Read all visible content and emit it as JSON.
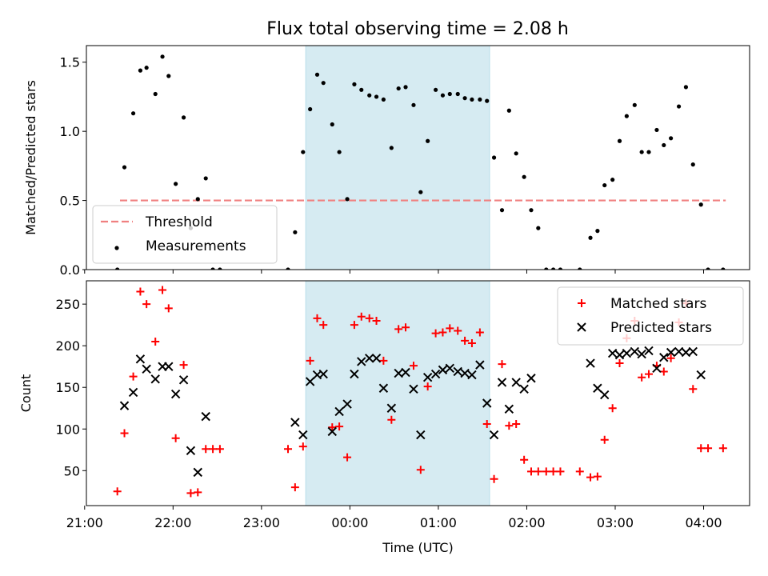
{
  "chart_data": [
    {
      "type": "scatter",
      "title": "Flux total observing time = 2.08 h",
      "xlabel": "",
      "ylabel": "Matched/Predicted stars",
      "ylim": [
        0,
        1.62
      ],
      "yticks": [
        "0.0",
        "0.5",
        "1.0",
        "1.5"
      ],
      "ytick_values": [
        0,
        0.5,
        1.0,
        1.5
      ],
      "xlim": [
        -2.98,
        4.52
      ],
      "grid": false,
      "legend": "lower-left",
      "shaded_interval": {
        "x": [
          -0.5,
          1.58
        ],
        "color": "#add8e6"
      },
      "threshold": {
        "name": "Threshold",
        "value": 0.5,
        "x": [
          -2.6,
          4.25
        ],
        "color": "#f08080"
      },
      "series": [
        {
          "name": "Measurements",
          "color": "#000000",
          "marker": "dot",
          "points": [
            [
              -2.63,
              0.0
            ],
            [
              -2.55,
              0.74
            ],
            [
              -2.45,
              1.13
            ],
            [
              -2.37,
              1.44
            ],
            [
              -2.3,
              1.46
            ],
            [
              -2.2,
              1.27
            ],
            [
              -2.12,
              1.54
            ],
            [
              -2.05,
              1.4
            ],
            [
              -1.97,
              0.62
            ],
            [
              -1.88,
              1.1
            ],
            [
              -1.8,
              0.3
            ],
            [
              -1.72,
              0.51
            ],
            [
              -1.63,
              0.66
            ],
            [
              -1.55,
              0.0
            ],
            [
              -1.47,
              0.0
            ],
            [
              -0.7,
              0.0
            ],
            [
              -0.62,
              0.27
            ],
            [
              -0.53,
              0.85
            ],
            [
              -0.45,
              1.16
            ],
            [
              -0.37,
              1.41
            ],
            [
              -0.3,
              1.35
            ],
            [
              -0.2,
              1.05
            ],
            [
              -0.12,
              0.85
            ],
            [
              -0.03,
              0.51
            ],
            [
              0.05,
              1.34
            ],
            [
              0.13,
              1.3
            ],
            [
              0.22,
              1.26
            ],
            [
              0.3,
              1.25
            ],
            [
              0.38,
              1.23
            ],
            [
              0.47,
              0.88
            ],
            [
              0.55,
              1.31
            ],
            [
              0.63,
              1.32
            ],
            [
              0.72,
              1.19
            ],
            [
              0.8,
              0.56
            ],
            [
              0.88,
              0.93
            ],
            [
              0.97,
              1.3
            ],
            [
              1.05,
              1.26
            ],
            [
              1.13,
              1.27
            ],
            [
              1.22,
              1.27
            ],
            [
              1.3,
              1.24
            ],
            [
              1.38,
              1.23
            ],
            [
              1.47,
              1.23
            ],
            [
              1.55,
              1.22
            ],
            [
              1.63,
              0.81
            ],
            [
              1.72,
              0.43
            ],
            [
              1.8,
              1.15
            ],
            [
              1.88,
              0.84
            ],
            [
              1.97,
              0.67
            ],
            [
              2.05,
              0.43
            ],
            [
              2.13,
              0.3
            ],
            [
              2.22,
              0.0
            ],
            [
              2.3,
              0.0
            ],
            [
              2.38,
              0.0
            ],
            [
              2.6,
              0.0
            ],
            [
              2.72,
              0.23
            ],
            [
              2.8,
              0.28
            ],
            [
              2.88,
              0.61
            ],
            [
              2.97,
              0.65
            ],
            [
              3.05,
              0.93
            ],
            [
              3.13,
              1.11
            ],
            [
              3.22,
              1.19
            ],
            [
              3.3,
              0.85
            ],
            [
              3.38,
              0.85
            ],
            [
              3.47,
              1.01
            ],
            [
              3.55,
              0.9
            ],
            [
              3.63,
              0.95
            ],
            [
              3.72,
              1.18
            ],
            [
              3.8,
              1.32
            ],
            [
              3.88,
              0.76
            ],
            [
              3.97,
              0.47
            ],
            [
              4.05,
              0.0
            ],
            [
              4.22,
              0.0
            ]
          ]
        }
      ]
    },
    {
      "type": "scatter",
      "title": "",
      "xlabel": "Time (UTC)",
      "ylabel": "Count",
      "ylim": [
        8,
        278
      ],
      "yticks": [
        "50",
        "100",
        "150",
        "200",
        "250"
      ],
      "ytick_values": [
        50,
        100,
        150,
        200,
        250
      ],
      "xlim": [
        -2.98,
        4.52
      ],
      "xticks": [
        "21:00",
        "22:00",
        "23:00",
        "00:00",
        "01:00",
        "02:00",
        "03:00",
        "04:00"
      ],
      "xtick_values": [
        -3,
        -2,
        -1,
        0,
        1,
        2,
        3,
        4
      ],
      "grid": false,
      "legend": "upper-right",
      "shaded_interval": {
        "x": [
          -0.5,
          1.58
        ],
        "color": "#add8e6"
      },
      "series": [
        {
          "name": "Matched stars",
          "color": "#ff0000",
          "marker": "plus",
          "points": [
            [
              -2.63,
              25
            ],
            [
              -2.55,
              95
            ],
            [
              -2.45,
              163
            ],
            [
              -2.37,
              265
            ],
            [
              -2.3,
              250
            ],
            [
              -2.2,
              205
            ],
            [
              -2.12,
              267
            ],
            [
              -2.05,
              245
            ],
            [
              -1.97,
              89
            ],
            [
              -1.88,
              177
            ],
            [
              -1.8,
              23
            ],
            [
              -1.72,
              24
            ],
            [
              -1.63,
              76
            ],
            [
              -1.55,
              76
            ],
            [
              -1.47,
              76
            ],
            [
              -0.7,
              76
            ],
            [
              -0.62,
              30
            ],
            [
              -0.53,
              79
            ],
            [
              -0.45,
              182
            ],
            [
              -0.37,
              233
            ],
            [
              -0.3,
              225
            ],
            [
              -0.2,
              102
            ],
            [
              -0.12,
              103
            ],
            [
              -0.03,
              66
            ],
            [
              0.05,
              225
            ],
            [
              0.13,
              235
            ],
            [
              0.22,
              233
            ],
            [
              0.3,
              230
            ],
            [
              0.38,
              182
            ],
            [
              0.47,
              111
            ],
            [
              0.55,
              220
            ],
            [
              0.63,
              222
            ],
            [
              0.72,
              176
            ],
            [
              0.8,
              51
            ],
            [
              0.88,
              151
            ],
            [
              0.97,
              215
            ],
            [
              1.05,
              216
            ],
            [
              1.13,
              221
            ],
            [
              1.22,
              218
            ],
            [
              1.3,
              206
            ],
            [
              1.38,
              203
            ],
            [
              1.47,
              216
            ],
            [
              1.55,
              106
            ],
            [
              1.63,
              40
            ],
            [
              1.72,
              178
            ],
            [
              1.8,
              104
            ],
            [
              1.88,
              106
            ],
            [
              1.97,
              63
            ],
            [
              2.05,
              49
            ],
            [
              2.13,
              49
            ],
            [
              2.22,
              49
            ],
            [
              2.3,
              49
            ],
            [
              2.38,
              49
            ],
            [
              2.6,
              49
            ],
            [
              2.72,
              42
            ],
            [
              2.8,
              43
            ],
            [
              2.88,
              87
            ],
            [
              2.97,
              125
            ],
            [
              3.05,
              179
            ],
            [
              3.13,
              209
            ],
            [
              3.22,
              230
            ],
            [
              3.3,
              162
            ],
            [
              3.38,
              166
            ],
            [
              3.47,
              176
            ],
            [
              3.55,
              169
            ],
            [
              3.63,
              185
            ],
            [
              3.72,
              228
            ],
            [
              3.8,
              251
            ],
            [
              3.88,
              148
            ],
            [
              3.97,
              77
            ],
            [
              4.05,
              77
            ],
            [
              4.22,
              77
            ]
          ]
        },
        {
          "name": "Predicted stars",
          "color": "#000000",
          "marker": "x",
          "points": [
            [
              -2.55,
              128
            ],
            [
              -2.45,
              144
            ],
            [
              -2.37,
              184
            ],
            [
              -2.3,
              172
            ],
            [
              -2.2,
              160
            ],
            [
              -2.12,
              175
            ],
            [
              -2.05,
              175
            ],
            [
              -1.97,
              142
            ],
            [
              -1.88,
              159
            ],
            [
              -1.8,
              74
            ],
            [
              -1.72,
              48
            ],
            [
              -1.63,
              115
            ],
            [
              -0.62,
              108
            ],
            [
              -0.53,
              93
            ],
            [
              -0.45,
              157
            ],
            [
              -0.37,
              165
            ],
            [
              -0.3,
              166
            ],
            [
              -0.2,
              97
            ],
            [
              -0.12,
              121
            ],
            [
              -0.03,
              130
            ],
            [
              0.05,
              166
            ],
            [
              0.13,
              181
            ],
            [
              0.22,
              185
            ],
            [
              0.3,
              185
            ],
            [
              0.38,
              149
            ],
            [
              0.47,
              125
            ],
            [
              0.55,
              167
            ],
            [
              0.63,
              168
            ],
            [
              0.72,
              148
            ],
            [
              0.8,
              93
            ],
            [
              0.88,
              162
            ],
            [
              0.97,
              166
            ],
            [
              1.05,
              171
            ],
            [
              1.13,
              173
            ],
            [
              1.22,
              169
            ],
            [
              1.3,
              167
            ],
            [
              1.38,
              165
            ],
            [
              1.47,
              177
            ],
            [
              1.55,
              131
            ],
            [
              1.63,
              93
            ],
            [
              1.72,
              156
            ],
            [
              1.8,
              124
            ],
            [
              1.88,
              156
            ],
            [
              1.97,
              148
            ],
            [
              2.05,
              161
            ],
            [
              2.72,
              179
            ],
            [
              2.8,
              149
            ],
            [
              2.88,
              141
            ],
            [
              2.97,
              191
            ],
            [
              3.05,
              189
            ],
            [
              3.13,
              191
            ],
            [
              3.22,
              193
            ],
            [
              3.3,
              190
            ],
            [
              3.38,
              194
            ],
            [
              3.47,
              173
            ],
            [
              3.55,
              186
            ],
            [
              3.63,
              192
            ],
            [
              3.72,
              193
            ],
            [
              3.8,
              192
            ],
            [
              3.88,
              193
            ],
            [
              3.97,
              165
            ]
          ]
        }
      ]
    }
  ]
}
